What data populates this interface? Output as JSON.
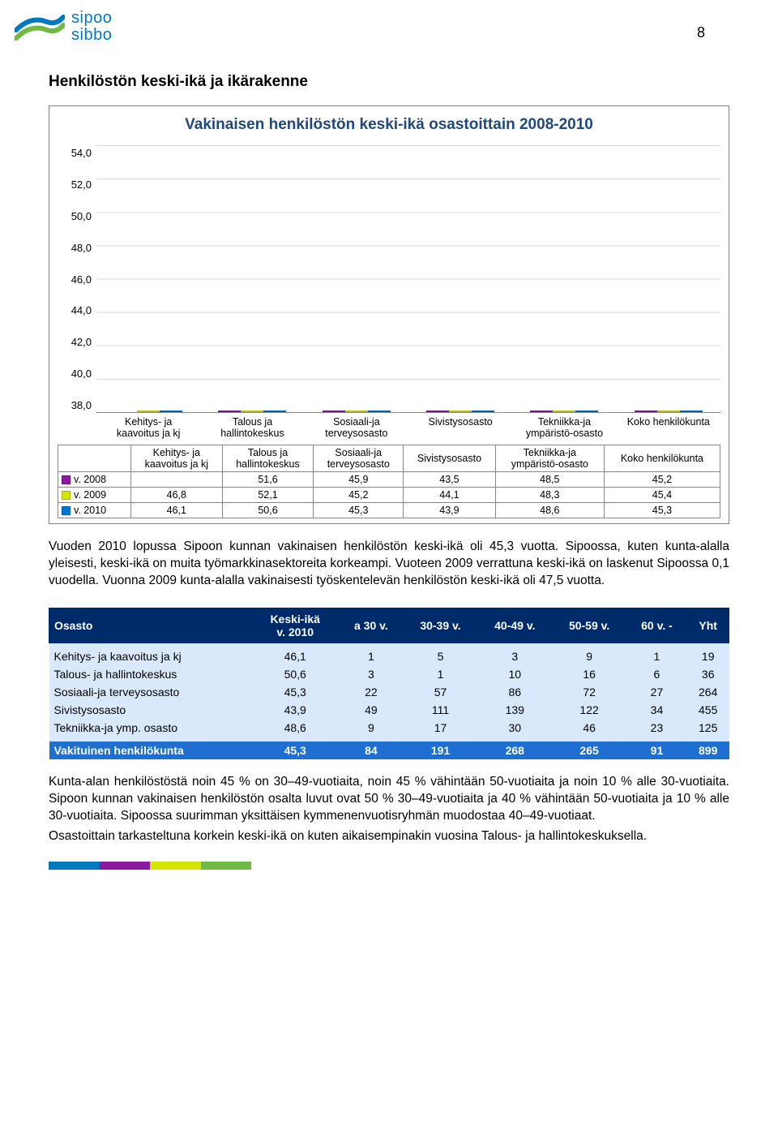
{
  "page_number": "8",
  "logo": {
    "line1": "sipoo",
    "line2": "sibbo"
  },
  "section_title": "Henkilöstön keski-ikä ja ikärakenne",
  "chart": {
    "type": "bar",
    "title": "Vakinaisen henkilöstön keski-ikä osastoittain 2008-2010",
    "title_color": "#1f497d",
    "ymin": 38.0,
    "ymax": 54.0,
    "ytick_step": 2.0,
    "yticks": [
      "54,0",
      "52,0",
      "50,0",
      "48,0",
      "46,0",
      "44,0",
      "42,0",
      "40,0",
      "38,0"
    ],
    "grid_color": "#d9d9d9",
    "categories": [
      "Kehitys- ja\nkaavoitus ja kj",
      "Talous ja\nhallintokeskus",
      "Sosiaali-ja\nterveysosasto",
      "Sivistysosasto",
      "Tekniikka-ja\nympäristö-osasto",
      "Koko henkilökunta"
    ],
    "series": [
      {
        "label": "v. 2008",
        "color": "#8a1aa1",
        "values": [
          null,
          51.6,
          45.9,
          43.5,
          48.5,
          45.2
        ]
      },
      {
        "label": "v. 2009",
        "color": "#d5e400",
        "values": [
          46.8,
          52.1,
          45.2,
          44.1,
          48.3,
          45.4
        ]
      },
      {
        "label": "v. 2010",
        "color": "#0077cf",
        "values": [
          46.1,
          50.6,
          45.3,
          43.9,
          48.6,
          45.3
        ]
      }
    ],
    "table_display": [
      [
        "",
        "51,6",
        "45,9",
        "43,5",
        "48,5",
        "45,2"
      ],
      [
        "46,8",
        "52,1",
        "45,2",
        "44,1",
        "48,3",
        "45,4"
      ],
      [
        "46,1",
        "50,6",
        "45,3",
        "43,9",
        "48,6",
        "45,3"
      ]
    ]
  },
  "para1": "Vuoden 2010 lopussa Sipoon kunnan vakinaisen henkilöstön keski-ikä oli 45,3 vuotta. Sipoossa, kuten kunta-alalla yleisesti, keski-ikä on muita työmarkkinasektoreita korkeampi. Vuoteen 2009 verrattuna keski-ikä on laskenut Sipoossa 0,1 vuodella. Vuonna 2009 kunta-alalla vakinaisesti työskentelevän henkilöstön keski-ikä oli 47,5 vuotta.",
  "data_table": {
    "headers": [
      "Osasto",
      "Keski-ikä\nv. 2010",
      "a 30 v.",
      "30-39 v.",
      "40-49 v.",
      "50-59 v.",
      "60 v. -",
      "Yht"
    ],
    "header_bg": "#002b6a",
    "row_bg": "#d9e8fb",
    "total_bg": "#1f6fd0",
    "rows": [
      [
        "Kehitys- ja kaavoitus ja kj",
        "46,1",
        "1",
        "5",
        "3",
        "9",
        "1",
        "19"
      ],
      [
        "Talous- ja hallintokeskus",
        "50,6",
        "3",
        "1",
        "10",
        "16",
        "6",
        "36"
      ],
      [
        "Sosiaali-ja terveysosasto",
        "45,3",
        "22",
        "57",
        "86",
        "72",
        "27",
        "264"
      ],
      [
        "Sivistysosasto",
        "43,9",
        "49",
        "111",
        "139",
        "122",
        "34",
        "455"
      ],
      [
        "Tekniikka-ja ymp. osasto",
        "48,6",
        "9",
        "17",
        "30",
        "46",
        "23",
        "125"
      ]
    ],
    "total": [
      "Vakituinen henkilökunta",
      "45,3",
      "84",
      "191",
      "268",
      "265",
      "91",
      "899"
    ]
  },
  "para2": "Kunta-alan henkilöstöstä noin 45 % on 30–49-vuotiaita, noin 45 % vähintään 50-vuotiaita ja noin 10 % alle 30-vuotiaita. Sipoon kunnan vakinaisen henkilöstön osalta luvut ovat 50 % 30–49-vuotiaita ja 40 % vähintään 50-vuotiaita ja 10 % alle 30-vuotiaita. Sipoossa suurimman yksittäisen kymmenenvuotisryhmän muodostaa 40–49-vuotiaat.",
  "para3": "Osastoittain tarkasteltuna korkein keski-ikä on kuten aikaisempinakin vuosina Talous- ja hallintokeskuksella.",
  "footer_colors": [
    "#0079c1",
    "#8a1aa1",
    "#d5e400",
    "#6fba44"
  ]
}
